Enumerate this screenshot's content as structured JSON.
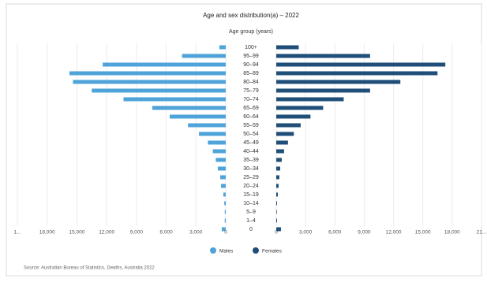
{
  "chart_data": {
    "type": "pyramid",
    "title": "Age and sex distribution(a) – 2022",
    "category_axis_label": "Age group (years)",
    "categories": [
      "100+",
      "95–99",
      "90–94",
      "85–89",
      "80–84",
      "75–79",
      "70–74",
      "65–69",
      "60–64",
      "55–59",
      "50–54",
      "45–49",
      "40–44",
      "35–39",
      "30–34",
      "25–29",
      "20–24",
      "15–19",
      "10–14",
      "5–9",
      "1–4",
      "0"
    ],
    "series": [
      {
        "name": "Males",
        "color": "#4ea3d9",
        "side": "left",
        "values": [
          640,
          4400,
          12400,
          15750,
          15400,
          13500,
          10300,
          7400,
          5650,
          3800,
          2700,
          1800,
          1300,
          1000,
          800,
          560,
          480,
          240,
          150,
          100,
          100,
          400
        ]
      },
      {
        "name": "Females",
        "color": "#1f4e79",
        "side": "right",
        "values": [
          2300,
          9600,
          17300,
          16500,
          12700,
          9600,
          6900,
          4800,
          3500,
          2500,
          1800,
          1200,
          800,
          560,
          400,
          320,
          240,
          160,
          80,
          60,
          80,
          480
        ]
      }
    ],
    "xlim": [
      0,
      21000
    ],
    "xticks_left": [
      {
        "value": 21000,
        "label": "1..."
      },
      {
        "value": 18000,
        "label": "18,000"
      },
      {
        "value": 15000,
        "label": "15,000"
      },
      {
        "value": 12000,
        "label": "12,000"
      },
      {
        "value": 9000,
        "label": "9,000"
      },
      {
        "value": 6000,
        "label": "6,000"
      },
      {
        "value": 3000,
        "label": "3,000"
      },
      0
    ],
    "xticks_right": [
      0,
      {
        "value": 3000,
        "label": "3,000"
      },
      {
        "value": 6000,
        "label": "6,000"
      },
      {
        "value": 9000,
        "label": "9,000"
      },
      {
        "value": 12000,
        "label": "12,000"
      },
      {
        "value": 15000,
        "label": "15,000"
      },
      {
        "value": 18000,
        "label": "18,000"
      },
      {
        "value": 21000,
        "label": "21..."
      }
    ],
    "grid": true,
    "legend": "bottom",
    "source": "Source: Australian Bureau of Statistics, Deaths, Australia 2022"
  }
}
